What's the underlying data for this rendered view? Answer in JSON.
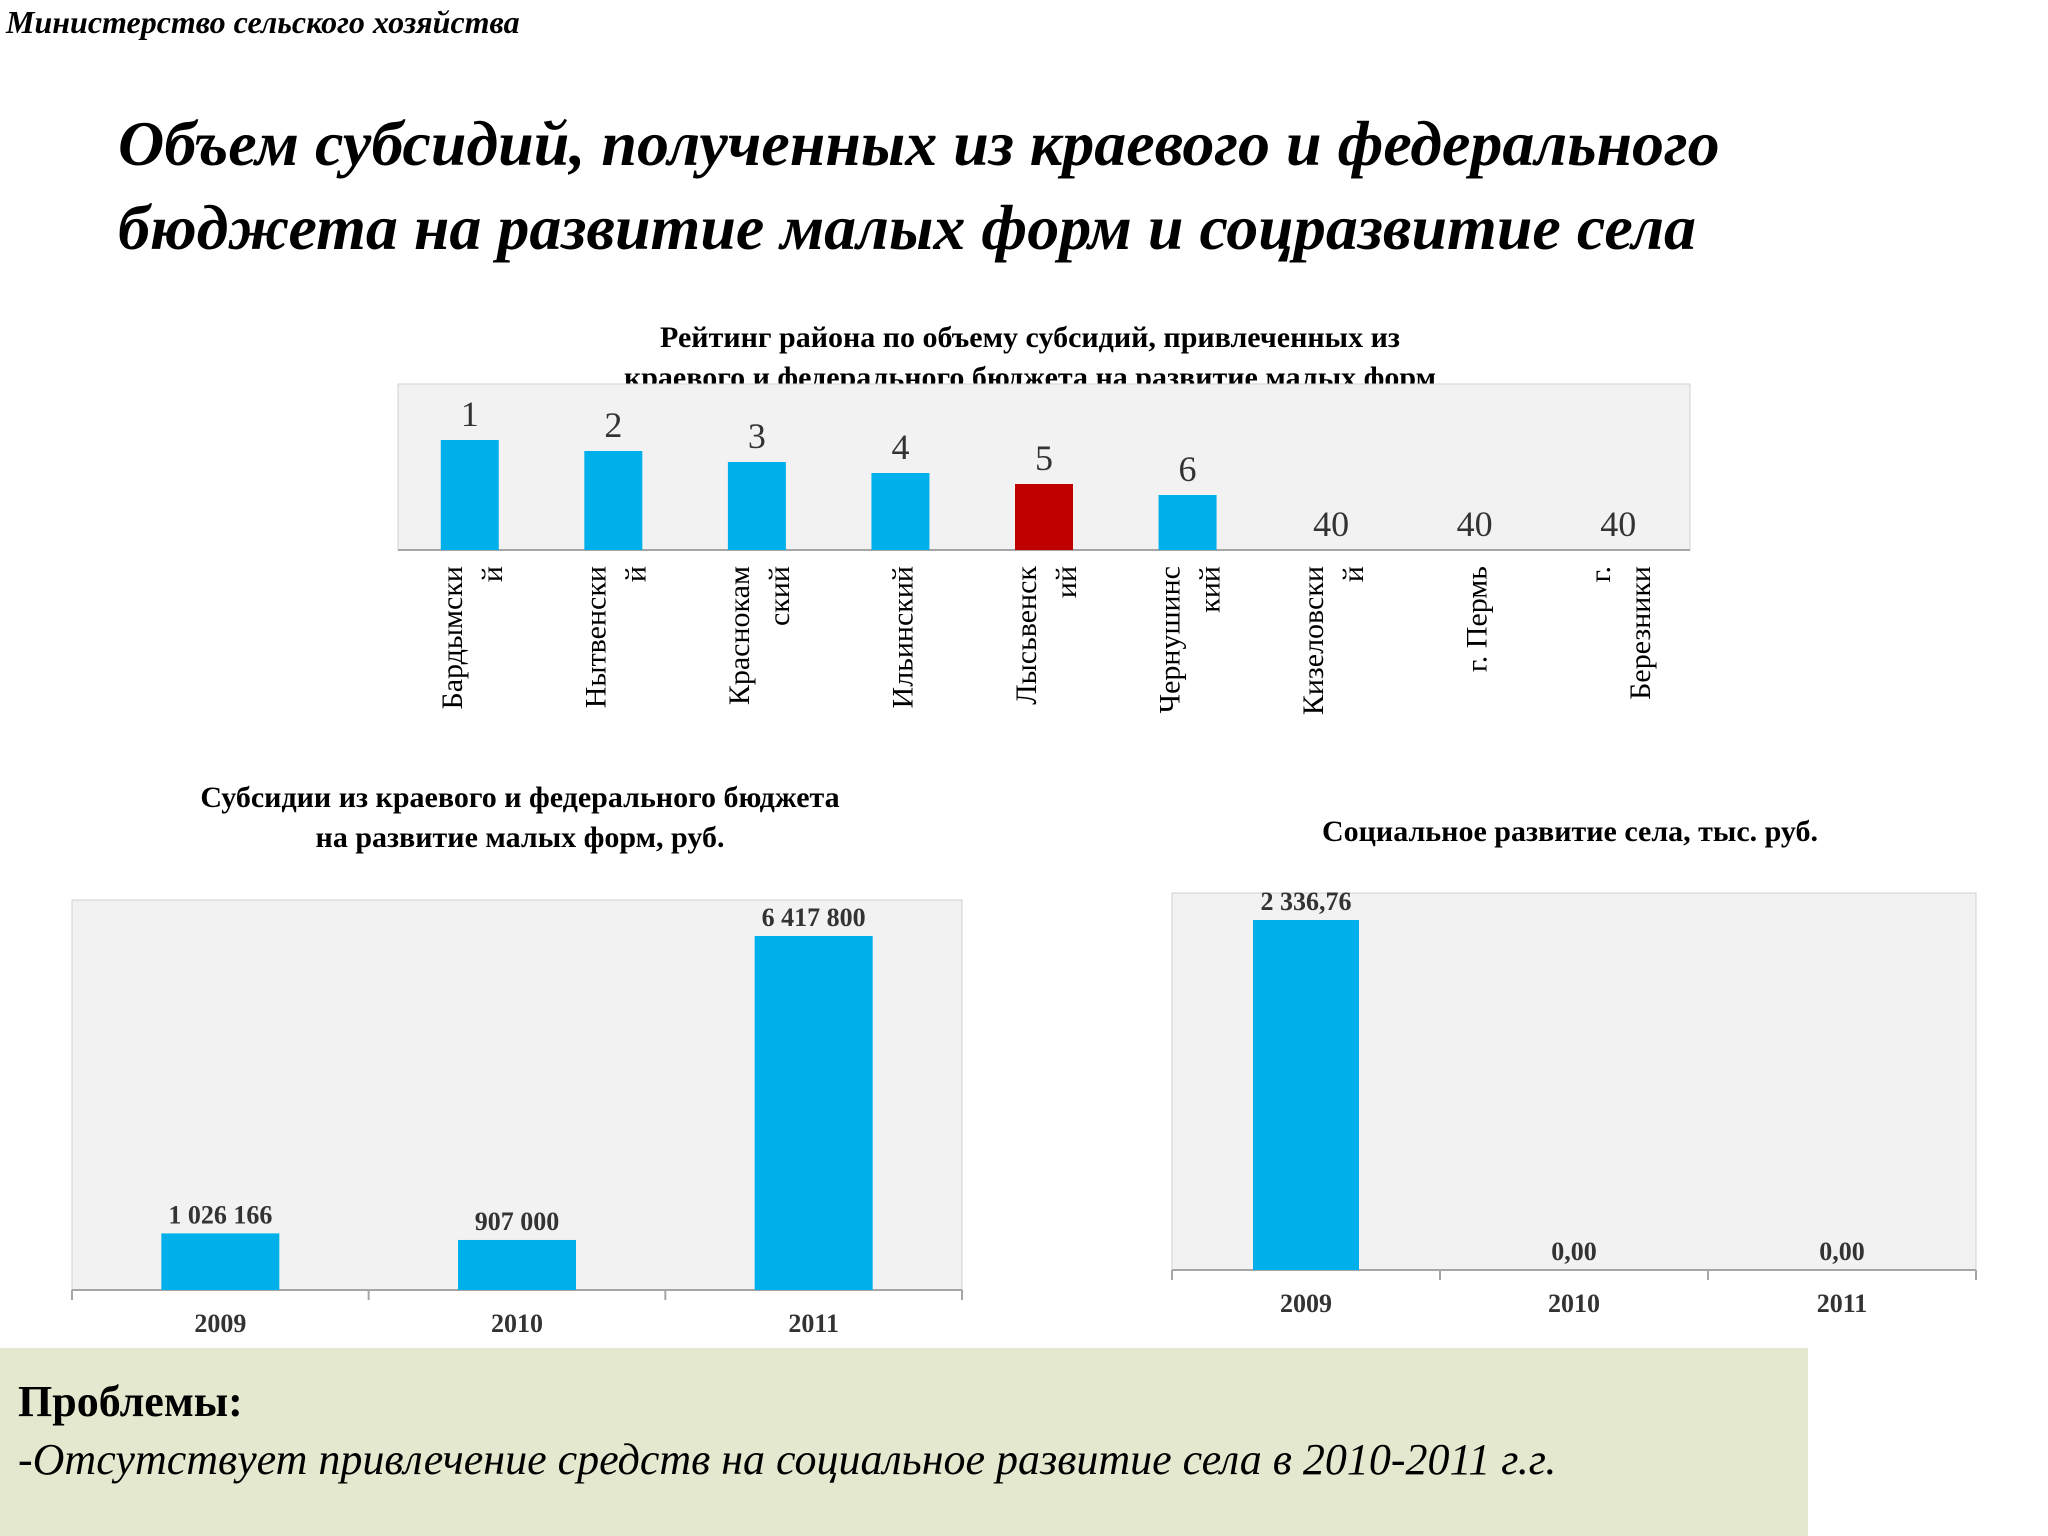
{
  "header": {
    "ministry": "Министерство сельского хозяйства",
    "title_line1": "Объем субсидий, полученных из краевого и федерального",
    "title_line2": "бюджета на развитие малых форм и соцразвитие села"
  },
  "colors": {
    "bar": "#00b0ea",
    "highlight": "#c00000",
    "plot_bg": "#f2f2f2",
    "problems_bg": "#e3e8cf"
  },
  "chart_data": [
    {
      "id": "rating",
      "type": "bar",
      "title": "Рейтинг района по объему субсидий, привлеченных из краевого и федерального бюджета на развитие малых форм",
      "title_line1": "Рейтинг района по объему субсидий, привлеченных из",
      "title_line2": "краевого и федерального бюджета на развитие малых форм",
      "categories": [
        [
          "Бардымски",
          "й"
        ],
        [
          "Нытвенски",
          "й"
        ],
        [
          "Краснокам",
          "ский"
        ],
        [
          "Ильинский"
        ],
        [
          "Лысьвенск",
          "ий"
        ],
        [
          "Чернушинс",
          "кий"
        ],
        [
          "Кизеловски",
          "й"
        ],
        [
          "г. Пермь"
        ],
        [
          "г.",
          "Березники"
        ]
      ],
      "values": [
        1,
        2,
        3,
        4,
        5,
        6,
        40,
        40,
        40
      ],
      "labels": [
        "1",
        "2",
        "3",
        "4",
        "5",
        "6",
        "40",
        "40",
        "40"
      ],
      "highlight_index": 4,
      "axis": "inverted rank (lower rank = taller bar)",
      "grid": false
    },
    {
      "id": "small_forms",
      "type": "bar",
      "title": "Субсидии из краевого и федерального бюджета на развитие малых форм, руб.",
      "title_line1": "Субсидии из краевого и федерального бюджета",
      "title_line2": "на развитие малых форм, руб.",
      "categories": [
        "2009",
        "2010",
        "2011"
      ],
      "values": [
        1026166,
        907000,
        6417800
      ],
      "labels": [
        "1 026 166",
        "907 000",
        "6 417 800"
      ],
      "grid": false
    },
    {
      "id": "social",
      "type": "bar",
      "title": "Социальное развитие села, тыс. руб.",
      "title_line1": "Социальное развитие села, тыс. руб.",
      "categories": [
        "2009",
        "2010",
        "2011"
      ],
      "values": [
        2336.76,
        0,
        0
      ],
      "labels": [
        "2 336,76",
        "0,00",
        "0,00"
      ],
      "grid": false
    }
  ],
  "problems": {
    "heading": "Проблемы:",
    "item": "-Отсутствует  привлечение средств на социальное развитие села в 2010-2011 г.г."
  }
}
